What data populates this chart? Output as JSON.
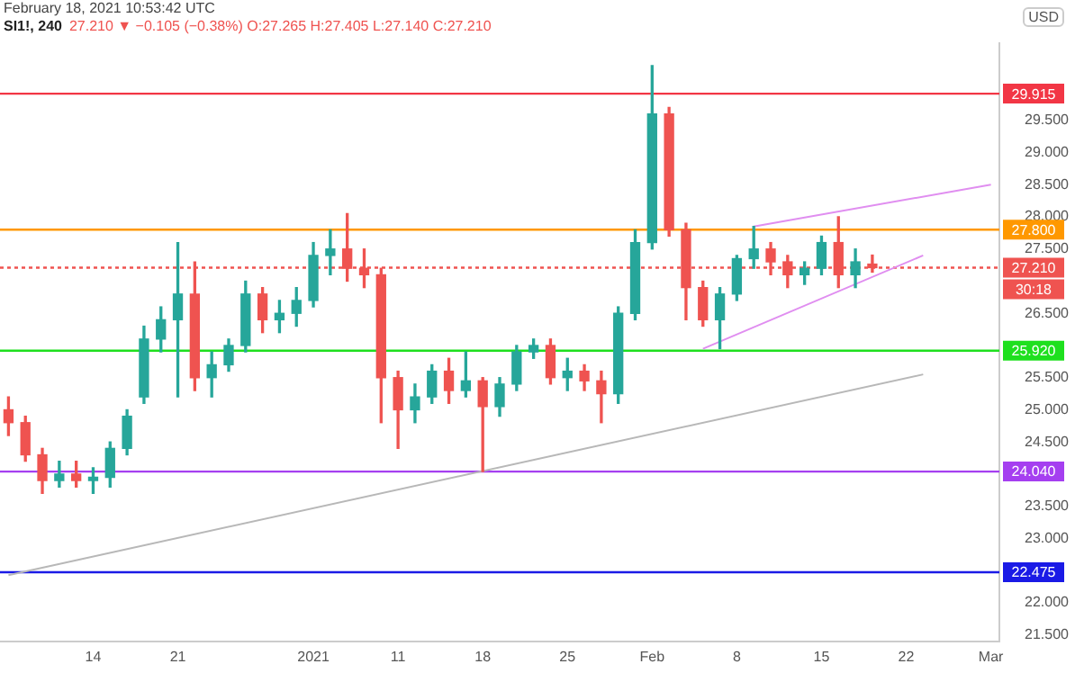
{
  "chart_data": {
    "type": "candlestick",
    "title": "SI1!, 240",
    "subtitle": "27.210 ▼ −0.105 (−0.38%) O:27.265 H:27.405 L:27.140 C:27.210",
    "ylabel": "USD",
    "annotations": [
      "February 18, 2021 10:53:42 UTC",
      "30:18"
    ],
    "categories": [
      null,
      null,
      null,
      null,
      null,
      "14",
      null,
      null,
      null,
      null,
      "21",
      null,
      null,
      null,
      null,
      null,
      null,
      null,
      "2021",
      null,
      null,
      null,
      null,
      "11",
      null,
      null,
      null,
      null,
      "18",
      null,
      null,
      null,
      null,
      "25",
      null,
      null,
      null,
      null,
      "Feb",
      null,
      null,
      null,
      null,
      "8",
      null,
      null,
      null,
      null,
      "15",
      null,
      null,
      null,
      null,
      "22",
      null,
      null,
      null,
      null,
      "Mar"
    ],
    "ohlc": [
      [
        25.0,
        25.2,
        24.6,
        24.8
      ],
      [
        24.8,
        24.9,
        24.2,
        24.3
      ],
      [
        24.3,
        24.4,
        23.7,
        23.9
      ],
      [
        23.9,
        24.2,
        23.8,
        24.0
      ],
      [
        24.0,
        24.2,
        23.8,
        23.9
      ],
      [
        23.9,
        24.1,
        23.7,
        23.95
      ],
      [
        23.95,
        24.5,
        23.8,
        24.4
      ],
      [
        24.4,
        25.0,
        24.3,
        24.9
      ],
      [
        25.2,
        26.3,
        25.1,
        26.1
      ],
      [
        26.1,
        26.6,
        25.9,
        26.4
      ],
      [
        26.4,
        27.6,
        25.2,
        26.8
      ],
      [
        26.8,
        27.3,
        25.3,
        25.5
      ],
      [
        25.5,
        25.9,
        25.2,
        25.7
      ],
      [
        25.7,
        26.1,
        25.6,
        26.0
      ],
      [
        26.0,
        27.0,
        25.9,
        26.8
      ],
      [
        26.8,
        26.9,
        26.2,
        26.4
      ],
      [
        26.4,
        26.7,
        26.2,
        26.5
      ],
      [
        26.5,
        26.9,
        26.3,
        26.7
      ],
      [
        26.7,
        27.6,
        26.6,
        27.4
      ],
      [
        27.4,
        27.8,
        27.1,
        27.5
      ],
      [
        27.5,
        28.05,
        27.0,
        27.2
      ],
      [
        27.2,
        27.5,
        26.9,
        27.1
      ],
      [
        27.1,
        27.2,
        24.8,
        25.5
      ],
      [
        25.5,
        25.6,
        24.4,
        25.0
      ],
      [
        25.0,
        25.4,
        24.8,
        25.2
      ],
      [
        25.2,
        25.7,
        25.1,
        25.6
      ],
      [
        25.6,
        25.8,
        25.1,
        25.3
      ],
      [
        25.3,
        25.9,
        25.2,
        25.45
      ],
      [
        25.45,
        25.5,
        24.04,
        25.05
      ],
      [
        25.05,
        25.5,
        24.9,
        25.4
      ],
      [
        25.4,
        26.0,
        25.3,
        25.9
      ],
      [
        25.9,
        26.1,
        25.8,
        26.0
      ],
      [
        26.0,
        26.1,
        25.4,
        25.5
      ],
      [
        25.5,
        25.8,
        25.3,
        25.6
      ],
      [
        25.6,
        25.7,
        25.3,
        25.45
      ],
      [
        25.45,
        25.6,
        24.8,
        25.25
      ],
      [
        25.25,
        26.6,
        25.1,
        26.5
      ],
      [
        26.5,
        27.8,
        26.4,
        27.6
      ],
      [
        27.6,
        30.35,
        27.5,
        29.6
      ],
      [
        29.6,
        29.7,
        27.7,
        27.8
      ],
      [
        27.8,
        27.9,
        26.4,
        26.9
      ],
      [
        26.9,
        27.0,
        26.3,
        26.4
      ],
      [
        26.4,
        26.9,
        25.95,
        26.8
      ],
      [
        26.8,
        27.4,
        26.7,
        27.35
      ],
      [
        27.35,
        27.85,
        27.2,
        27.5
      ],
      [
        27.5,
        27.6,
        27.1,
        27.3
      ],
      [
        27.3,
        27.4,
        26.9,
        27.1
      ],
      [
        27.1,
        27.3,
        26.95,
        27.2
      ],
      [
        27.2,
        27.7,
        27.1,
        27.6
      ],
      [
        27.6,
        28.0,
        26.9,
        27.1
      ],
      [
        27.1,
        27.5,
        26.9,
        27.3
      ],
      [
        27.265,
        27.405,
        27.14,
        27.21
      ],
      null,
      null,
      null,
      null,
      null,
      null,
      null
    ],
    "series": [
      {
        "type": "line",
        "color": "#b8b8b8",
        "values": [
          22.43,
          null,
          null,
          null,
          null,
          null,
          null,
          null,
          null,
          null,
          null,
          null,
          null,
          null,
          null,
          null,
          null,
          null,
          null,
          null,
          null,
          null,
          null,
          null,
          null,
          null,
          null,
          null,
          null,
          null,
          null,
          null,
          null,
          null,
          null,
          null,
          null,
          null,
          null,
          null,
          null,
          null,
          null,
          null,
          null,
          null,
          null,
          null,
          null,
          null,
          null,
          null,
          null,
          null,
          25.55,
          null,
          null,
          null,
          null
        ]
      },
      {
        "type": "line",
        "color": "#e08ef0",
        "values": [
          null,
          null,
          null,
          null,
          null,
          null,
          null,
          null,
          null,
          null,
          null,
          null,
          null,
          null,
          null,
          null,
          null,
          null,
          null,
          null,
          null,
          null,
          null,
          null,
          null,
          null,
          null,
          null,
          null,
          null,
          null,
          null,
          null,
          null,
          null,
          null,
          null,
          null,
          null,
          null,
          null,
          null,
          null,
          null,
          27.85,
          null,
          null,
          null,
          null,
          null,
          null,
          null,
          null,
          null,
          null,
          null,
          null,
          null,
          28.5
        ]
      },
      {
        "type": "line",
        "color": "#e08ef0",
        "values": [
          null,
          null,
          null,
          null,
          null,
          null,
          null,
          null,
          null,
          null,
          null,
          null,
          null,
          null,
          null,
          null,
          null,
          null,
          null,
          null,
          null,
          null,
          null,
          null,
          null,
          null,
          null,
          null,
          null,
          null,
          null,
          null,
          null,
          null,
          null,
          null,
          null,
          null,
          null,
          null,
          null,
          25.95,
          null,
          null,
          null,
          null,
          null,
          null,
          null,
          null,
          null,
          null,
          null,
          null,
          27.4,
          null,
          null,
          null,
          null
        ]
      }
    ],
    "ref_lines": [
      {
        "axis": "y",
        "value": 29.915,
        "label": "29.915",
        "color": "#f23645"
      },
      {
        "axis": "y",
        "value": 27.8,
        "label": "27.800",
        "color": "#ff9800"
      },
      {
        "axis": "y",
        "value": 27.21,
        "label": "27.210",
        "color": "#ef5350",
        "line_style": "dotted"
      },
      {
        "axis": "y",
        "value": 25.92,
        "label": "25.920",
        "color": "#1ee01e"
      },
      {
        "axis": "y",
        "value": 24.04,
        "label": "24.040",
        "color": "#a53ff0"
      },
      {
        "axis": "y",
        "value": 22.475,
        "label": "22.475",
        "color": "#1a1ae6"
      }
    ],
    "ylim": [
      21.4,
      30.7
    ],
    "yticks": [
      {
        "value": 21.5,
        "label": "21.500"
      },
      {
        "value": 22,
        "label": "22.000"
      },
      {
        "value": 23,
        "label": "23.000"
      },
      {
        "value": 23.5,
        "label": "23.500"
      },
      {
        "value": 24.5,
        "label": "24.500"
      },
      {
        "value": 25,
        "label": "25.000"
      },
      {
        "value": 25.5,
        "label": "25.500"
      },
      {
        "value": 26.5,
        "label": "26.500"
      },
      {
        "value": 27.5,
        "label": "27.500"
      },
      {
        "value": 28,
        "label": "28.000"
      },
      {
        "value": 28.5,
        "label": "28.500"
      },
      {
        "value": 29,
        "label": "29.000"
      },
      {
        "value": 29.5,
        "label": "29.500"
      }
    ],
    "grid": false,
    "legend": false
  }
}
